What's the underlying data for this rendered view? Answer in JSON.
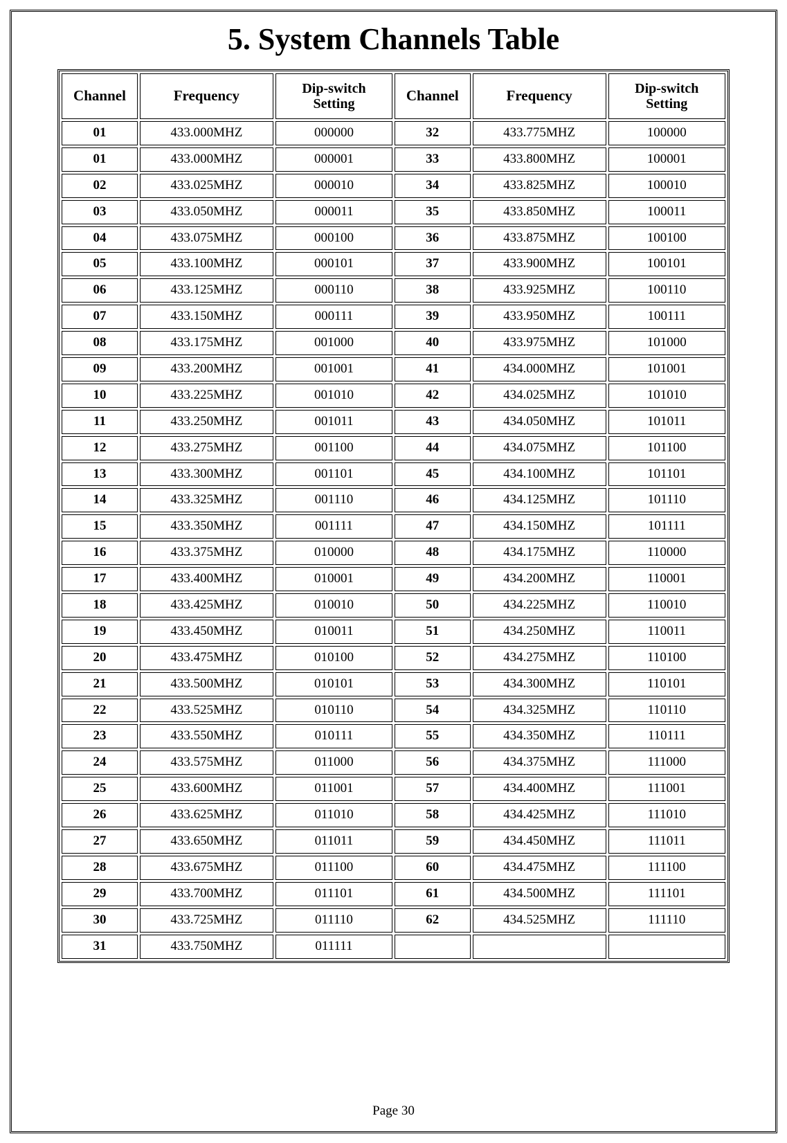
{
  "document": {
    "title": "5. System Channels Table",
    "page_label": "Page 30",
    "table": {
      "type": "table",
      "background_color": "#ffffff",
      "border_color": "#000000",
      "text_color": "#000000",
      "header_fontsize_pt": 16,
      "body_fontsize_pt": 14,
      "columns": [
        "Channel",
        "Frequency",
        "Dip-switch Setting",
        "Channel",
        "Frequency",
        "Dip-switch Setting"
      ],
      "column_widths_pct": [
        9,
        16,
        14,
        9,
        16,
        14
      ],
      "column_align": [
        "center",
        "center",
        "center",
        "center",
        "center",
        "center"
      ],
      "rows": [
        [
          "01",
          "433.000MHZ",
          "000000",
          "32",
          "433.775MHZ",
          "100000"
        ],
        [
          "01",
          "433.000MHZ",
          "000001",
          "33",
          "433.800MHZ",
          "100001"
        ],
        [
          "02",
          "433.025MHZ",
          "000010",
          "34",
          "433.825MHZ",
          "100010"
        ],
        [
          "03",
          "433.050MHZ",
          "000011",
          "35",
          "433.850MHZ",
          "100011"
        ],
        [
          "04",
          "433.075MHZ",
          "000100",
          "36",
          "433.875MHZ",
          "100100"
        ],
        [
          "05",
          "433.100MHZ",
          "000101",
          "37",
          "433.900MHZ",
          "100101"
        ],
        [
          "06",
          "433.125MHZ",
          "000110",
          "38",
          "433.925MHZ",
          "100110"
        ],
        [
          "07",
          "433.150MHZ",
          "000111",
          "39",
          "433.950MHZ",
          "100111"
        ],
        [
          "08",
          "433.175MHZ",
          "001000",
          "40",
          "433.975MHZ",
          "101000"
        ],
        [
          "09",
          "433.200MHZ",
          "001001",
          "41",
          "434.000MHZ",
          "101001"
        ],
        [
          "10",
          "433.225MHZ",
          "001010",
          "42",
          "434.025MHZ",
          "101010"
        ],
        [
          "11",
          "433.250MHZ",
          "001011",
          "43",
          "434.050MHZ",
          "101011"
        ],
        [
          "12",
          "433.275MHZ",
          "001100",
          "44",
          "434.075MHZ",
          "101100"
        ],
        [
          "13",
          "433.300MHZ",
          "001101",
          "45",
          "434.100MHZ",
          "101101"
        ],
        [
          "14",
          "433.325MHZ",
          "001110",
          "46",
          "434.125MHZ",
          "101110"
        ],
        [
          "15",
          "433.350MHZ",
          "001111",
          "47",
          "434.150MHZ",
          "101111"
        ],
        [
          "16",
          "433.375MHZ",
          "010000",
          "48",
          "434.175MHZ",
          "110000"
        ],
        [
          "17",
          "433.400MHZ",
          "010001",
          "49",
          "434.200MHZ",
          "110001"
        ],
        [
          "18",
          "433.425MHZ",
          "010010",
          "50",
          "434.225MHZ",
          "110010"
        ],
        [
          "19",
          "433.450MHZ",
          "010011",
          "51",
          "434.250MHZ",
          "110011"
        ],
        [
          "20",
          "433.475MHZ",
          "010100",
          "52",
          "434.275MHZ",
          "110100"
        ],
        [
          "21",
          "433.500MHZ",
          "010101",
          "53",
          "434.300MHZ",
          "110101"
        ],
        [
          "22",
          "433.525MHZ",
          "010110",
          "54",
          "434.325MHZ",
          "110110"
        ],
        [
          "23",
          "433.550MHZ",
          "010111",
          "55",
          "434.350MHZ",
          "110111"
        ],
        [
          "24",
          "433.575MHZ",
          "011000",
          "56",
          "434.375MHZ",
          "111000"
        ],
        [
          "25",
          "433.600MHZ",
          "011001",
          "57",
          "434.400MHZ",
          "111001"
        ],
        [
          "26",
          "433.625MHZ",
          "011010",
          "58",
          "434.425MHZ",
          "111010"
        ],
        [
          "27",
          "433.650MHZ",
          "011011",
          "59",
          "434.450MHZ",
          "111011"
        ],
        [
          "28",
          "433.675MHZ",
          "011100",
          "60",
          "434.475MHZ",
          "111100"
        ],
        [
          "29",
          "433.700MHZ",
          "011101",
          "61",
          "434.500MHZ",
          "111101"
        ],
        [
          "30",
          "433.725MHZ",
          "011110",
          "62",
          "434.525MHZ",
          "111110"
        ],
        [
          "31",
          "433.750MHZ",
          "011111",
          "",
          "",
          ""
        ]
      ]
    }
  }
}
